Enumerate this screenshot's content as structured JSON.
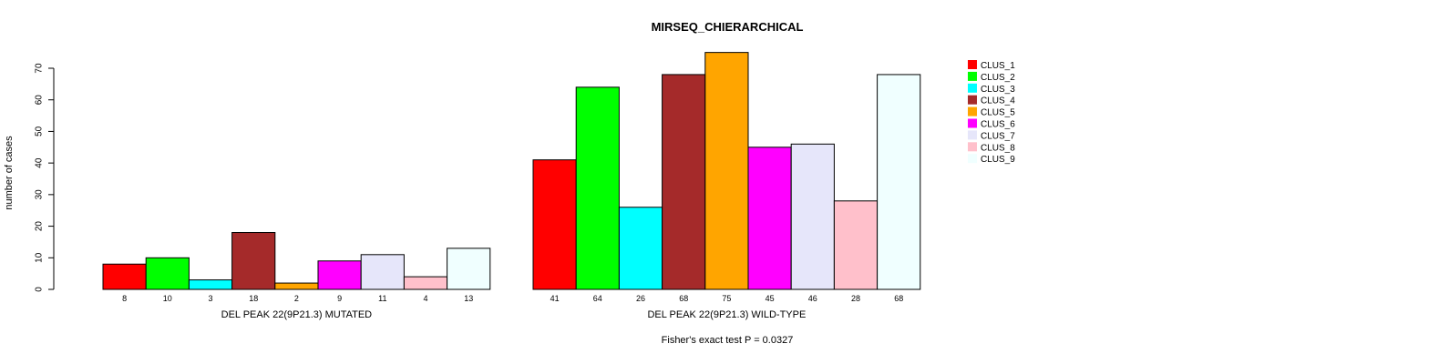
{
  "chart_data": {
    "type": "bar",
    "title": "MIRSEQ_CHIERARCHICAL",
    "ylabel": "number of cases",
    "ylim": [
      0,
      70
    ],
    "yticks": [
      0,
      10,
      20,
      30,
      40,
      50,
      60,
      70
    ],
    "footnote": "Fisher's exact test P = 0.0327",
    "groups": [
      {
        "label": "DEL PEAK 22(9P21.3) MUTATED",
        "values": [
          8,
          10,
          3,
          18,
          2,
          9,
          11,
          4,
          13
        ]
      },
      {
        "label": "DEL PEAK 22(9P21.3) WILD-TYPE",
        "values": [
          41,
          64,
          26,
          68,
          75,
          45,
          46,
          28,
          68
        ]
      }
    ],
    "series": [
      {
        "name": "CLUS_1",
        "color": "#ff0000"
      },
      {
        "name": "CLUS_2",
        "color": "#00ff00"
      },
      {
        "name": "CLUS_3",
        "color": "#00ffff"
      },
      {
        "name": "CLUS_4",
        "color": "#a52a2a"
      },
      {
        "name": "CLUS_5",
        "color": "#ffa500"
      },
      {
        "name": "CLUS_6",
        "color": "#ff00ff"
      },
      {
        "name": "CLUS_7",
        "color": "#e6e6fa"
      },
      {
        "name": "CLUS_8",
        "color": "#ffc0cb"
      },
      {
        "name": "CLUS_9",
        "color": "#f0ffff"
      }
    ],
    "legend_position": "top-right"
  }
}
